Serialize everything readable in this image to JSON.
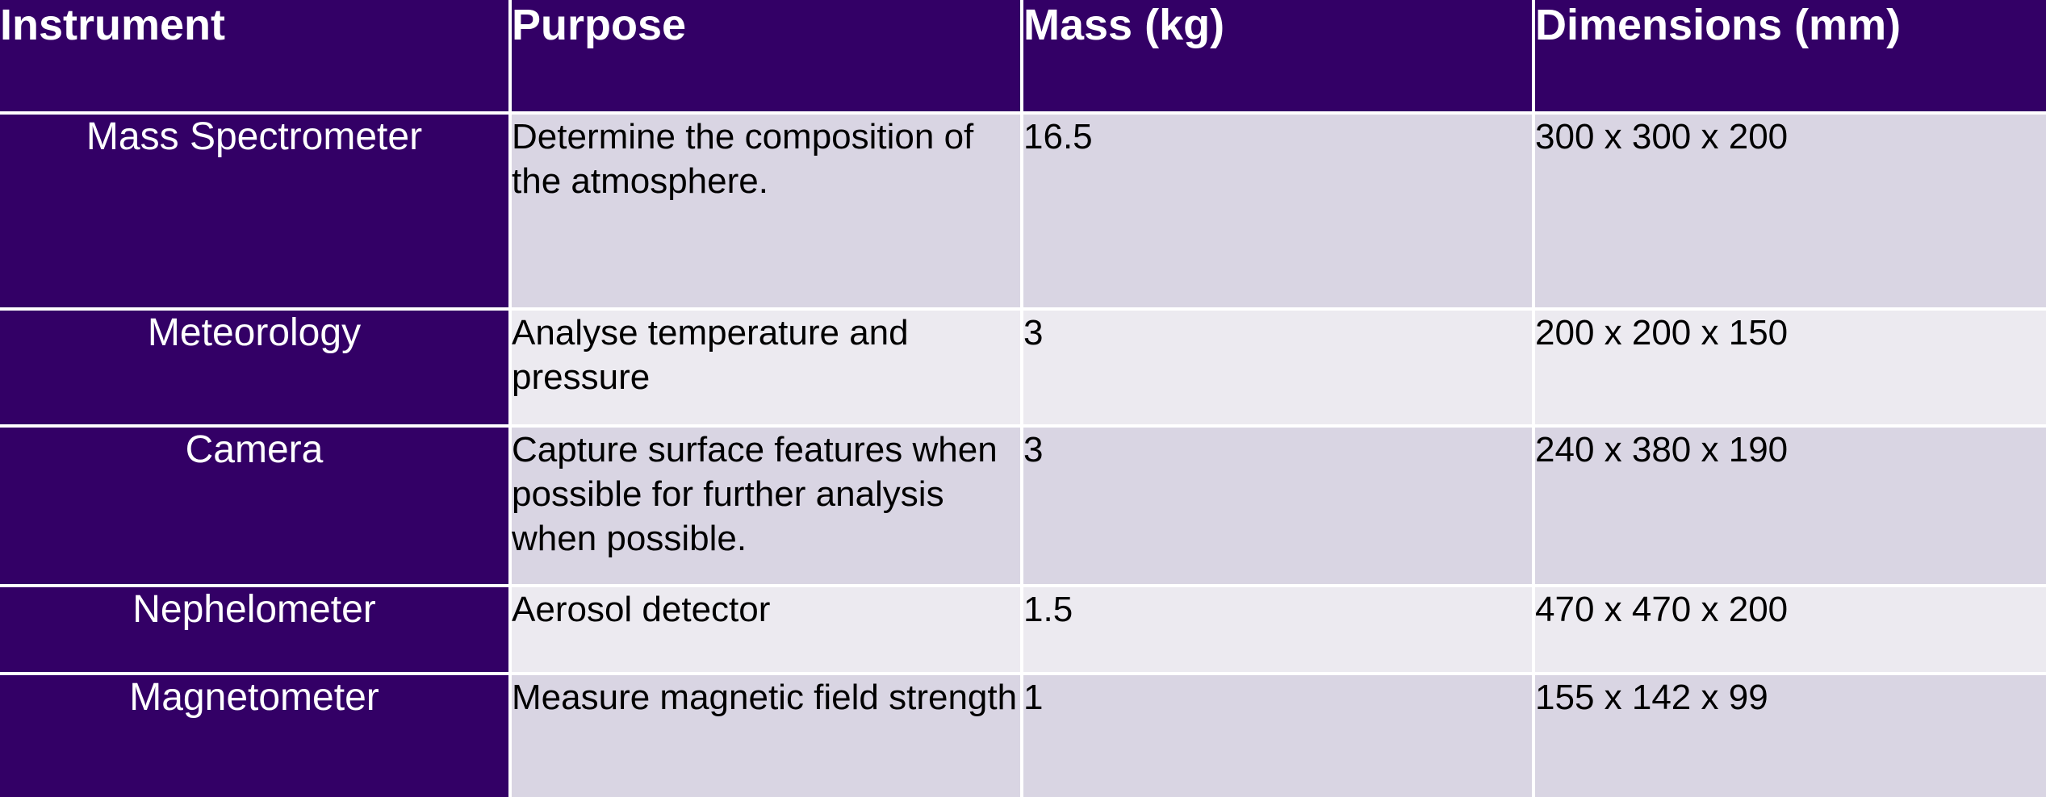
{
  "header": {
    "instrument": "Instrument",
    "purpose": "Purpose",
    "mass": "Mass (kg)",
    "dimensions": "Dimensions (mm)"
  },
  "rows": [
    {
      "instrument": "Mass Spectrometer",
      "purpose": "Determine the composition of the atmosphere.",
      "mass": "16.5",
      "dimensions": "300 x 300 x 200"
    },
    {
      "instrument": "Meteorology",
      "purpose": "Analyse temperature and pressure",
      "mass": "3",
      "dimensions": "200 x 200 x 150"
    },
    {
      "instrument": "Camera",
      "purpose": "Capture surface features when possible for further analysis when possible.",
      "mass": "3",
      "dimensions": "240 x 380 x 190"
    },
    {
      "instrument": "Nephelometer",
      "purpose": "Aerosol detector",
      "mass": "1.5",
      "dimensions": "470 x 470 x 200"
    },
    {
      "instrument": "Magnetometer",
      "purpose": "Measure magnetic field strength",
      "mass": "1",
      "dimensions": "155 x 142 x 99"
    }
  ],
  "colors": {
    "header_bg": "#330066",
    "row_odd_bg": "#d9d5e3",
    "row_even_bg": "#eceaf0"
  }
}
